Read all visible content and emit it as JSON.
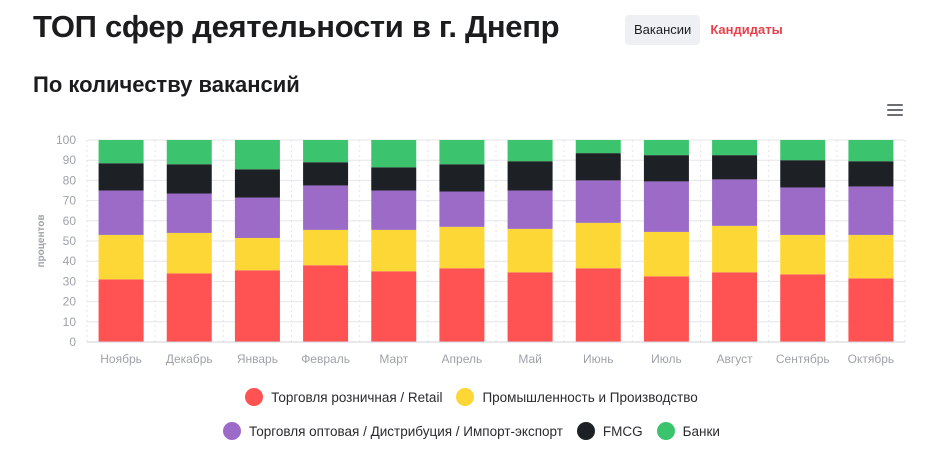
{
  "header": {
    "title": "ТОП сфер деятельности в г. Днепр",
    "tabs": [
      {
        "label": "Вакансии",
        "active": true
      },
      {
        "label": "Кандидаты",
        "active": false
      }
    ]
  },
  "subtitle": "По количеству вакансий",
  "menu_icon": "hamburger-menu-icon",
  "colors": {
    "accent": "#e8414b",
    "retail": "#ff5252",
    "industry": "#fdd735",
    "wholesale": "#9b6bc7",
    "fmcg": "#1d2125",
    "banks": "#3bc46d"
  },
  "chart_data": {
    "type": "bar",
    "stacked": true,
    "ylabel": "процентов",
    "ylim": [
      0,
      100
    ],
    "yticks": [
      0,
      10,
      20,
      30,
      40,
      50,
      60,
      70,
      80,
      90,
      100
    ],
    "grid": true,
    "legend_position": "bottom",
    "categories": [
      "Ноябрь",
      "Декабрь",
      "Январь",
      "Февраль",
      "Март",
      "Апрель",
      "Май",
      "Июнь",
      "Июль",
      "Август",
      "Сентябрь",
      "Октябрь"
    ],
    "series": [
      {
        "name": "Торговля розничная / Retail",
        "color": "#ff5252",
        "values": [
          31,
          34,
          35.5,
          38,
          35,
          36.5,
          34.5,
          36.5,
          32.5,
          34.5,
          33.5,
          31.5
        ]
      },
      {
        "name": "Промышленность и Производство",
        "color": "#fdd735",
        "values": [
          22,
          20,
          16,
          17.5,
          20.5,
          20.5,
          21.5,
          22.5,
          22,
          23,
          19.5,
          21.5
        ]
      },
      {
        "name": "Торговля оптовая / Дистрибуция / Импорт-экспорт",
        "color": "#9b6bc7",
        "values": [
          22,
          19.5,
          20,
          22,
          19.5,
          17.5,
          19,
          21,
          25,
          23,
          23.5,
          24
        ]
      },
      {
        "name": "FMCG",
        "color": "#1d2125",
        "values": [
          13.5,
          14.5,
          14,
          11.5,
          11.5,
          13.5,
          14.5,
          13.5,
          13,
          12,
          13.5,
          12.5
        ]
      },
      {
        "name": "Банки",
        "color": "#3bc46d",
        "values": [
          11.5,
          12,
          14.5,
          11,
          13.5,
          12,
          10.5,
          6.5,
          7.5,
          7.5,
          10,
          10.5
        ]
      }
    ]
  }
}
